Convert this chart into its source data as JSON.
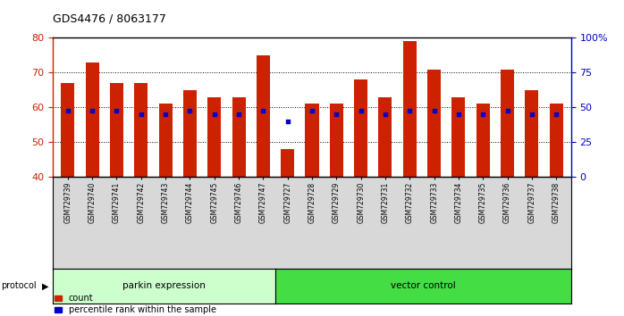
{
  "title": "GDS4476 / 8063177",
  "samples": [
    "GSM729739",
    "GSM729740",
    "GSM729741",
    "GSM729742",
    "GSM729743",
    "GSM729744",
    "GSM729745",
    "GSM729746",
    "GSM729747",
    "GSM729727",
    "GSM729728",
    "GSM729729",
    "GSM729730",
    "GSM729731",
    "GSM729732",
    "GSM729733",
    "GSM729734",
    "GSM729735",
    "GSM729736",
    "GSM729737",
    "GSM729738"
  ],
  "counts": [
    67,
    73,
    67,
    67,
    61,
    65,
    63,
    63,
    75,
    48,
    61,
    61,
    68,
    63,
    79,
    71,
    63,
    61,
    71,
    65,
    61
  ],
  "percentiles": [
    59,
    59,
    59,
    58,
    58,
    59,
    58,
    58,
    59,
    56,
    59,
    58,
    59,
    58,
    59,
    59,
    58,
    58,
    59,
    58,
    58
  ],
  "ymin": 40,
  "ymax": 80,
  "right_yticks": [
    0,
    25,
    50,
    75,
    100
  ],
  "right_yticklabels": [
    "0",
    "25",
    "50",
    "75",
    "100%"
  ],
  "bar_color": "#cc2200",
  "dot_color": "#0000cc",
  "parkin_color": "#ccffcc",
  "vector_color": "#44dd44",
  "parkin_label": "parkin expression",
  "vector_label": "vector control",
  "parkin_count": 9,
  "legend_count_label": "count",
  "legend_pct_label": "percentile rank within the sample",
  "xtick_bg": "#d8d8d8"
}
